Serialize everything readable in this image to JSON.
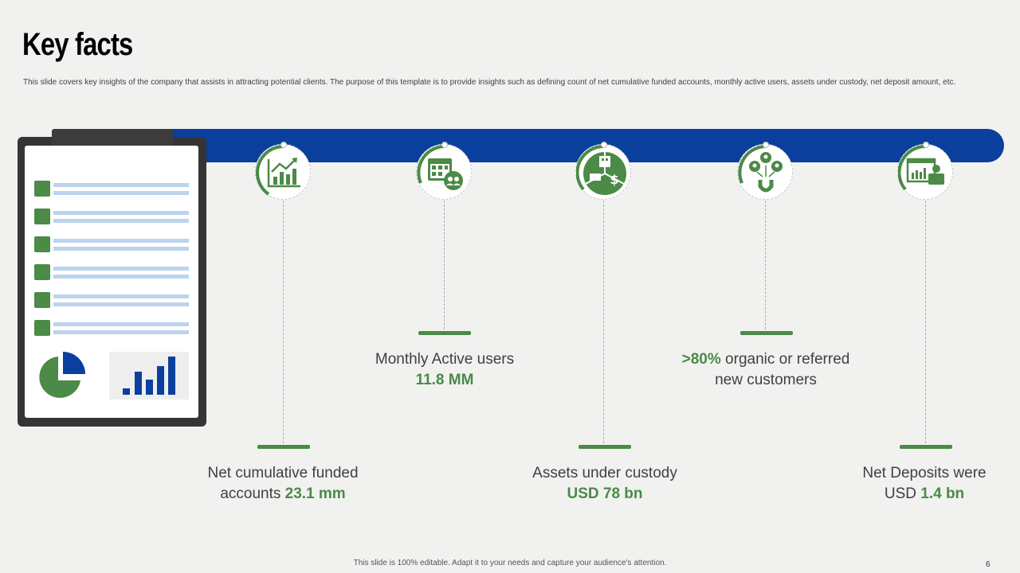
{
  "title": "Key facts",
  "subtitle": "This slide covers key insights of the company that assists in attracting potential clients. The purpose of this template is to provide insights such as defining count of net cumulative funded accounts, monthly active users, assets under custody, net deposit amount, etc.",
  "colors": {
    "accent_green": "#4b8a47",
    "band_blue": "#0b3f9e",
    "clipboard": "#353535"
  },
  "facts": [
    {
      "icon": "growth-chart-icon",
      "line1": "Net cumulative funded",
      "line2_pre": "accounts ",
      "line2_highlight": "23.1 mm",
      "line2_post": ""
    },
    {
      "icon": "calendar-users-icon",
      "line1": "Monthly Active users",
      "line2_pre": "",
      "line2_highlight": "11.8 MM",
      "line2_post": ""
    },
    {
      "icon": "assets-custody-icon",
      "line1": "Assets under custody",
      "line2_pre": "",
      "line2_highlight": "USD 78 bn",
      "line2_post": ""
    },
    {
      "icon": "customer-magnet-icon",
      "line1_highlight": ">80%",
      "line1": " organic or referred",
      "line2_pre": "new customers",
      "line2_highlight": "",
      "line2_post": ""
    },
    {
      "icon": "deposit-wallet-icon",
      "line1": "Net Deposits were",
      "line2_pre": "USD ",
      "line2_highlight": "1.4 bn",
      "line2_post": ""
    }
  ],
  "footer": "This slide is 100% editable. Adapt it to your needs and capture your audience's attention.",
  "page_number": "6"
}
